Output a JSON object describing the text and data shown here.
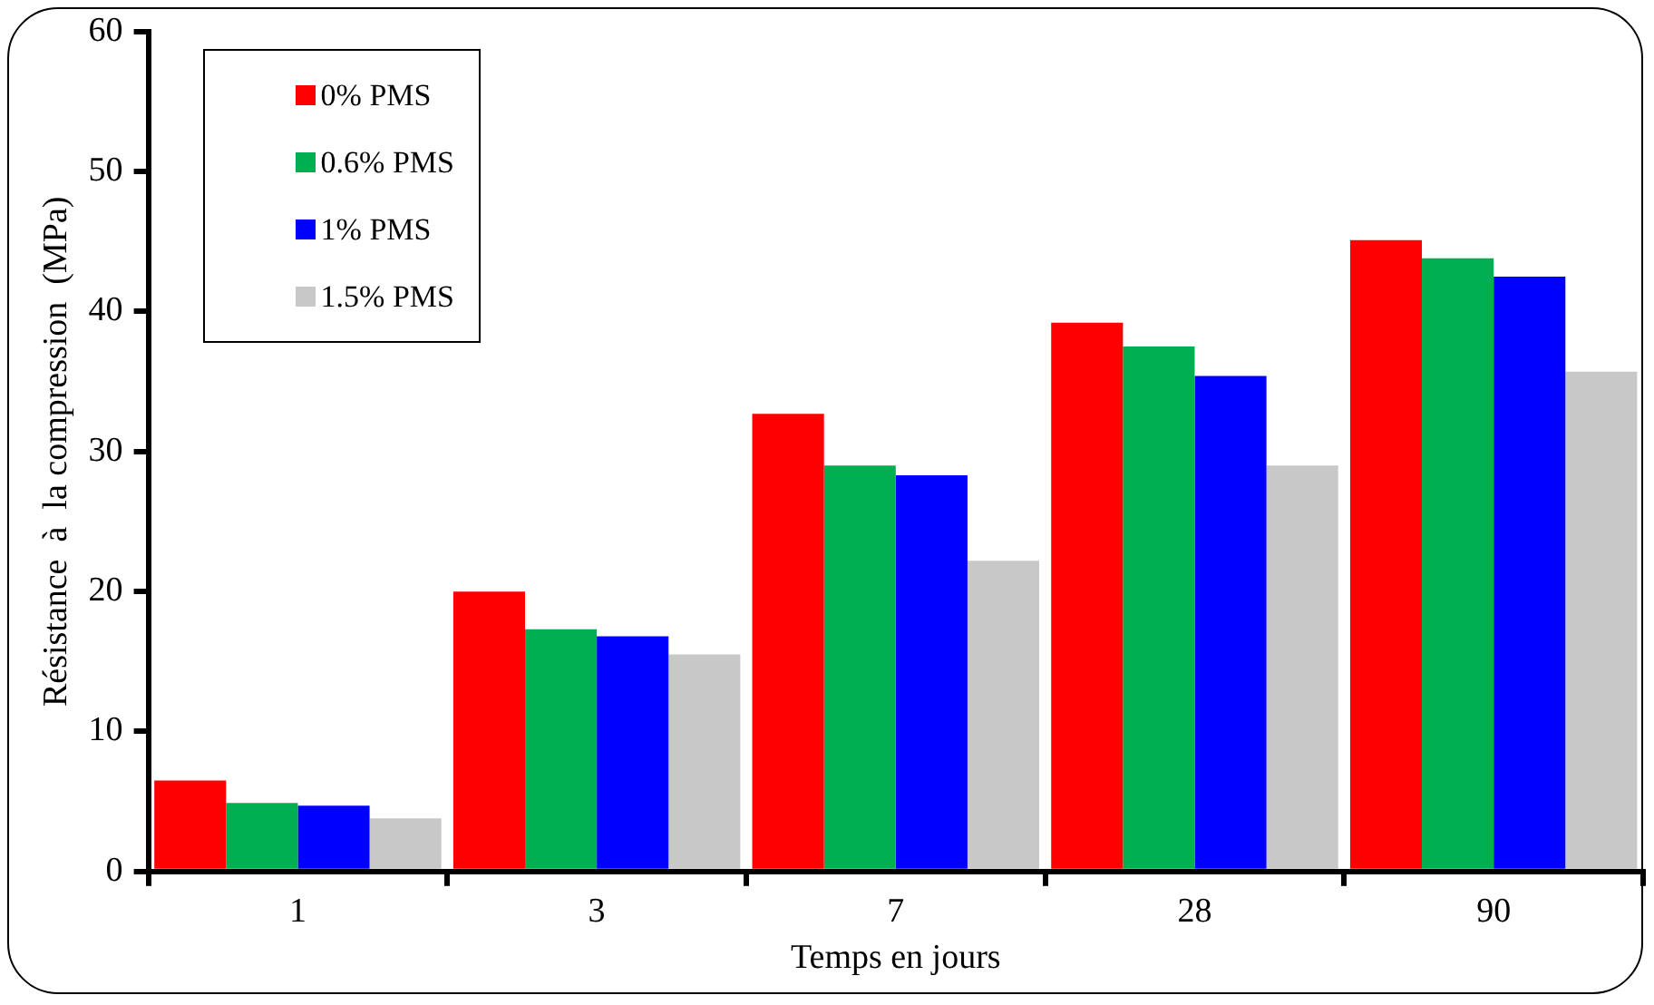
{
  "chart_data": {
    "type": "bar",
    "xlabel": "Temps en jours",
    "ylabel": "Résistance  à  la compression  (MPa)",
    "categories": [
      "1",
      "3",
      "7",
      "28",
      "90"
    ],
    "series": [
      {
        "name": "0% PMS",
        "color": "#ff0000",
        "values": [
          6.5,
          20.0,
          32.7,
          39.2,
          45.1
        ]
      },
      {
        "name": "0.6% PMS",
        "color": "#00b050",
        "values": [
          4.9,
          17.3,
          29.0,
          37.5,
          43.8
        ]
      },
      {
        "name": "1% PMS",
        "color": "#0000ff",
        "values": [
          4.7,
          16.8,
          28.3,
          35.4,
          42.5
        ]
      },
      {
        "name": "1.5% PMS",
        "color": "#c8c8c8",
        "values": [
          3.8,
          15.5,
          22.2,
          29.0,
          35.7
        ]
      }
    ],
    "ylim": [
      0,
      60
    ],
    "yticks": [
      0,
      10,
      20,
      30,
      40,
      50,
      60
    ],
    "grid": false,
    "legend": "top left"
  }
}
